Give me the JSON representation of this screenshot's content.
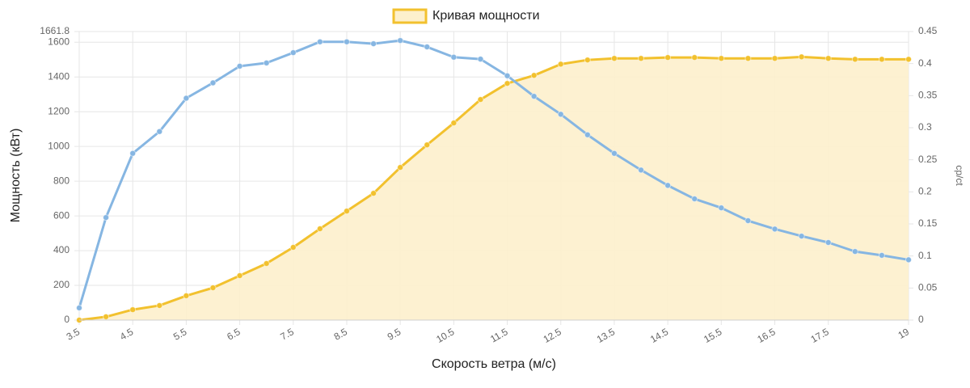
{
  "chart_data": {
    "type": "line",
    "legend": "top",
    "grid": true,
    "x_label": "Скорость ветра (м/с)",
    "y_label": "Мощность (кВт)",
    "y2_label": "cp/ct",
    "x": [
      3.5,
      4,
      4.5,
      5,
      5.5,
      6,
      6.5,
      7,
      7.5,
      8,
      8.5,
      9,
      9.5,
      10,
      10.5,
      11,
      11.5,
      12,
      12.5,
      13,
      13.5,
      14,
      14.5,
      15,
      15.5,
      16,
      16.5,
      17,
      17.5,
      18,
      18.5,
      19
    ],
    "xlim": [
      3.5,
      19
    ],
    "xticks": [
      3.5,
      4.5,
      5.5,
      6.5,
      7.5,
      8.5,
      9.5,
      10.5,
      11.5,
      12.5,
      13.5,
      14.5,
      15.5,
      16.5,
      17.5,
      19
    ],
    "ylim": [
      0,
      1661.8
    ],
    "yticks": [
      0,
      200,
      400,
      600,
      800,
      1000,
      1200,
      1400,
      1600,
      1661.8
    ],
    "y2lim": [
      0,
      0.45
    ],
    "y2ticks": [
      0,
      0.05,
      0.1,
      0.15,
      0.2,
      0.25,
      0.3,
      0.35,
      0.4,
      0.45
    ],
    "series": [
      {
        "name": "Кривая мощности",
        "color": "#f2c12e",
        "fill": "#fdf0cc",
        "values": [
          0,
          19,
          60,
          84,
          140,
          186,
          256,
          326,
          419,
          526,
          628,
          730,
          879,
          1009,
          1135,
          1270,
          1363,
          1409,
          1474,
          1498,
          1507,
          1507,
          1512,
          1512,
          1507,
          1507,
          1507,
          1516,
          1507,
          1502,
          1502,
          1502
        ]
      },
      {
        "color": "#86b6e2",
        "axis": "y2",
        "values": [
          0.019,
          0.16,
          0.26,
          0.294,
          0.346,
          0.37,
          0.396,
          0.401,
          0.417,
          0.434,
          0.434,
          0.431,
          0.436,
          0.426,
          0.41,
          0.407,
          0.381,
          0.349,
          0.321,
          0.289,
          0.26,
          0.234,
          0.21,
          0.189,
          0.175,
          0.155,
          0.142,
          0.131,
          0.121,
          0.107,
          0.101,
          0.094
        ]
      }
    ]
  }
}
